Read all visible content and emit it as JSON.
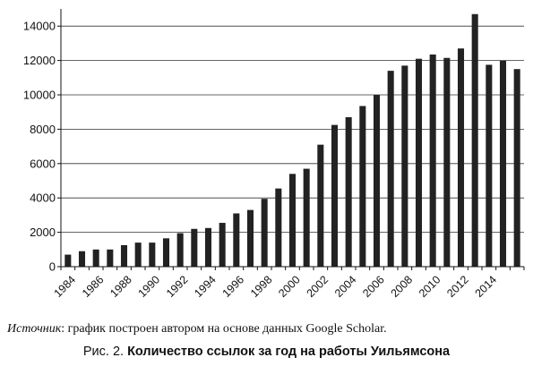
{
  "chart_data": {
    "type": "bar",
    "categories": [
      "1984",
      "1985",
      "1986",
      "1987",
      "1988",
      "1989",
      "1990",
      "1991",
      "1992",
      "1993",
      "1994",
      "1995",
      "1996",
      "1997",
      "1998",
      "1999",
      "2000",
      "2001",
      "2002",
      "2003",
      "2004",
      "2005",
      "2006",
      "2007",
      "2008",
      "2009",
      "2010",
      "2011",
      "2012",
      "2013",
      "2014",
      "2015",
      "2016"
    ],
    "values": [
      700,
      900,
      1000,
      1000,
      1250,
      1400,
      1400,
      1650,
      1950,
      2200,
      2250,
      2550,
      3100,
      3300,
      3950,
      4550,
      5400,
      5700,
      7100,
      8250,
      8700,
      9350,
      10000,
      11400,
      11700,
      12100,
      12350,
      12150,
      12700,
      14700,
      11750,
      12000,
      11500
    ],
    "xticks": [
      "1984",
      "1986",
      "1988",
      "1990",
      "1992",
      "1994",
      "1996",
      "1998",
      "2000",
      "2002",
      "2004",
      "2006",
      "2008",
      "2010",
      "2012",
      "2014"
    ],
    "yticks": [
      "0",
      "2000",
      "4000",
      "6000",
      "8000",
      "10000",
      "12000",
      "14000"
    ],
    "ylim": [
      0,
      15000
    ],
    "grid": true,
    "bar_color": "#222222"
  },
  "source": {
    "label": "Источник",
    "text": ": график построен автором на основе данных Google Scholar."
  },
  "caption": {
    "prefix": "Рис. 2. ",
    "title": "Количество ссылок за год на работы Уильямсона"
  }
}
